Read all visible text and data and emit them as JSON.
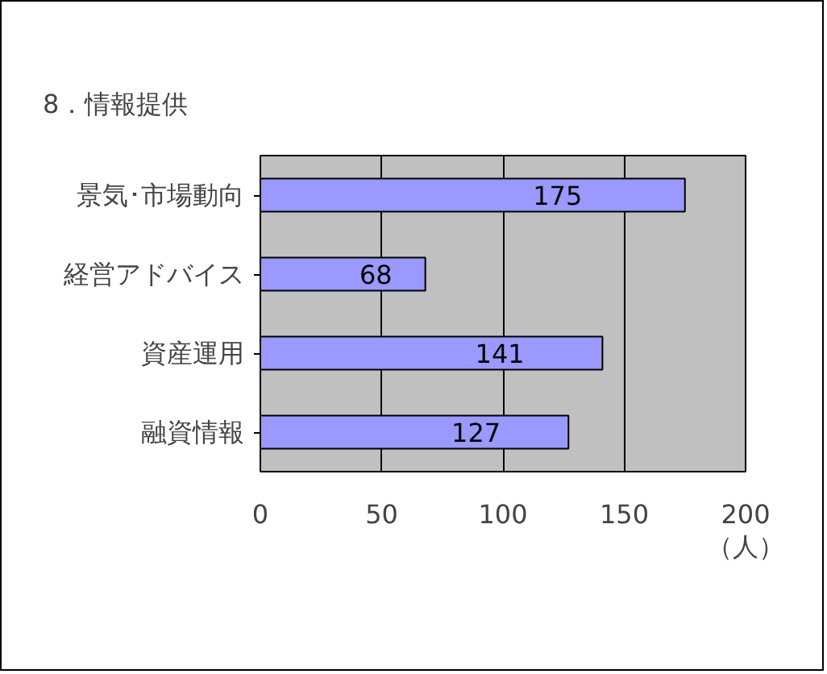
{
  "chart_data": {
    "type": "bar",
    "orientation": "horizontal",
    "title": "8．情報提供",
    "xlabel": "（人）",
    "categories": [
      "景気･市場動向",
      "経営アドバイス",
      "資産運用",
      "融資情報"
    ],
    "values": [
      175,
      68,
      141,
      127
    ],
    "color": "#9999ff",
    "xlim": [
      0,
      200
    ],
    "xticks": [
      0,
      50,
      100,
      150,
      200
    ],
    "grid": "x",
    "data_labels": true
  }
}
